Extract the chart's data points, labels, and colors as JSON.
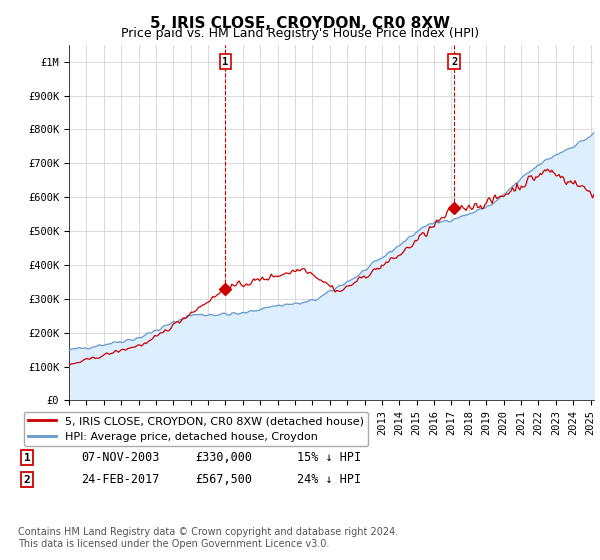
{
  "title": "5, IRIS CLOSE, CROYDON, CR0 8XW",
  "subtitle": "Price paid vs. HM Land Registry's House Price Index (HPI)",
  "ylabel_ticks": [
    "£0",
    "£100K",
    "£200K",
    "£300K",
    "£400K",
    "£500K",
    "£600K",
    "£700K",
    "£800K",
    "£900K",
    "£1M"
  ],
  "ytick_values": [
    0,
    100000,
    200000,
    300000,
    400000,
    500000,
    600000,
    700000,
    800000,
    900000,
    1000000
  ],
  "ylim": [
    0,
    1050000
  ],
  "xlim_start": 1995.0,
  "xlim_end": 2025.2,
  "sale1_x": 2004.0,
  "sale1_y": 330000,
  "sale1_label": "1",
  "sale2_x": 2017.15,
  "sale2_y": 567500,
  "sale2_label": "2",
  "line_color_red": "#cc0000",
  "line_color_blue": "#6699cc",
  "fill_color_blue": "#ddeeff",
  "background_color": "#ffffff",
  "grid_color": "#cccccc",
  "legend_line1": "5, IRIS CLOSE, CROYDON, CR0 8XW (detached house)",
  "legend_line2": "HPI: Average price, detached house, Croydon",
  "annotation1_date": "07-NOV-2003",
  "annotation1_price": "£330,000",
  "annotation1_hpi": "15% ↓ HPI",
  "annotation2_date": "24-FEB-2017",
  "annotation2_price": "£567,500",
  "annotation2_hpi": "24% ↓ HPI",
  "footnote": "Contains HM Land Registry data © Crown copyright and database right 2024.\nThis data is licensed under the Open Government Licence v3.0.",
  "title_fontsize": 11,
  "subtitle_fontsize": 9,
  "tick_fontsize": 7.5,
  "legend_fontsize": 8,
  "annotation_fontsize": 8.5,
  "footnote_fontsize": 7
}
